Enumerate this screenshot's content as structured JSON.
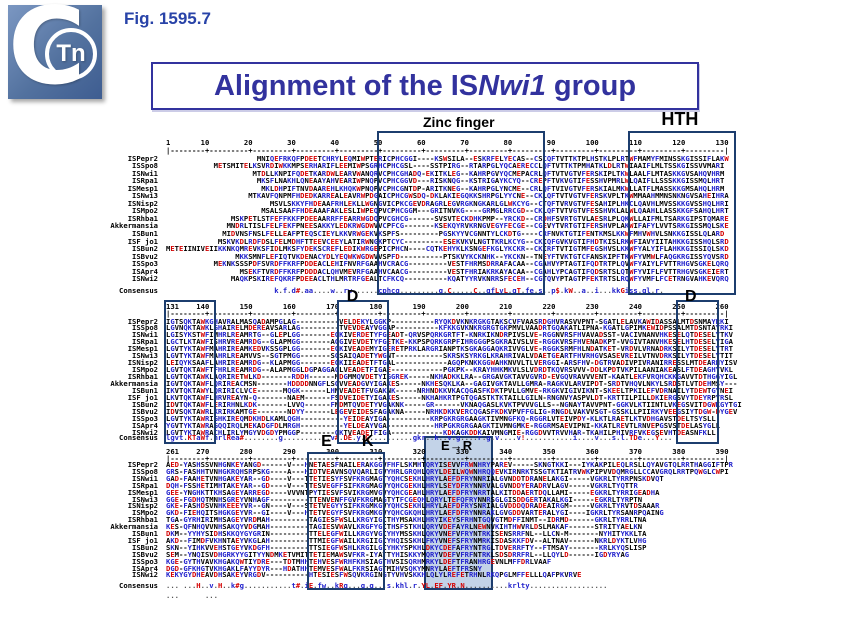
{
  "fig_label": "Fig. 1595.7",
  "logo": {
    "c": "C",
    "tn": "Tn"
  },
  "title": {
    "prefix": "Alignment of the IS",
    "italic": "Nwi1",
    "suffix": " group"
  },
  "colors": {
    "accent_navy": "#1c3d6e",
    "title_blue": "#32329e",
    "fig_blue": "#2843a8",
    "seq_red": "#d40000",
    "seq_blue": "#2222cc",
    "logo_blue": "#53729f",
    "er_fill": "#c3d3e8"
  },
  "annotations": {
    "zinc_finger": "Zinc finger",
    "hth": "HTH",
    "d1": "D",
    "d2": "D",
    "e": "E",
    "k": "K",
    "e_to_r": "E→R"
  },
  "alignment": {
    "consensus_label": "Consensus",
    "row_names": [
      "ISPepr2",
      "ISSpo8",
      "ISNwi1",
      "ISRpa1",
      "ISMesp1",
      "ISNwi3",
      "ISNisp2",
      "ISMpo2",
      "ISRhba1",
      "Akkermansia",
      "ISBun1",
      "ISF jo1",
      "ISBun2",
      "ISBvu2",
      "ISSpo3",
      "ISApr4",
      "ISNwi2"
    ],
    "blocks": [
      {
        "start": 1,
        "end": 130,
        "sequences": [
          "                     MNIQEFRKQFPDEETCHRYLEQMIWPTERICPHCGGI----KSWSILA--ESKRFELYECAS--CSCQFTVTTKTPLHSTKLPLRTWFMAMYFMINSSKGISSIFLAKW",
          "           METSMITELKSVRDIWKKMPSERHARIFLEEMIWPSGRHCPHCGSL----SSTPIRG--RTARPGLYQCAERECCLQFTVTTKTPMHATKLDLRTWIAAIFLMLTSSKGISSVVMARI",
          "                    MTDLLKNPIFQDETKARDWLEARVWANQRVCPHCGHADQ-EKITKLEG--KAHRPGVYQCMEPACRLQFTVTVGTVFERSKIPLTKWLAALFLMTASKKGVSAHQVHRM",
          "                     MKSFLNAKHLQNEAAYAHVEARIWPNQPVCPHCGGVD---RISKNQG--KSTRIGAYKCYQ--CREPFTVKVGTIFESSHVPMRLWLQAIFLLSSSKKGISSMQLHRT",
          "                      MKLDHPIFTNVDAAREHLKHQKWPNQPVCPHCGNTDP-ARITKNEG--KAHRPGLYNCME--CRLQFTVIVGTVFERSKIALMKWLLATFLMASSKKGMSAHQLHRM",
          "                   MTKAVFQNPMFHDEDKARREALEAVRWPDGAICPHCGWSDQ-DKLAKIEGQKKSHRPGLYYCNE--CKLQFTVTVGTVFERSKVPLTKWMMAAHMMNSNKNGVSAHEIHRA",
          "                        MSVLSKKYFHDEAAFRHLEKLLWGNGVICPKCGEVDRAGRLEGVRGKNGKARLGLWKCYG--CTQFTVRVGTVFESAHIPLHKCLQAVHLMVSSKKGVSSHQLHRI",
          "                      MSALSAAFFHDEAAAFAKLESLIWPEQPVCPHCGGM---GRITNVKG----GRMGLRRCGD--CKLQFTVTVGTVFESSHVKLALWLQAAHLLASSKKGFSAHQLHRT",
          "               MSKPETLSTFEFFKKFPDEEAARRFFEARRWGDQPVCGHCG------SVSVTECKDHKPMP--YRCKD--CRDHFSVRTGTVLAESRLPLQKWLLAIFMLTSARKGIPSTQMARE",
          "              MNDRLTISLFELFEKFPNEESAKKYLEDKRWGDWVVCPFCG-------KSEKQYRVKRNGVEGYFECGE--CGEVYTVRTGTIFERSHVPLAKWIFAFYLVVTSRKGISSMQLSKE",
          "             MIDVNSFNSLFELLEAFPTEQSCIEYLKKVRWGEKVKSPFS---------PGSKYYVCGNNTYLCKDTG----CRFNVKTGTIFENTKMSLKKWFMHVWHVLSNKKGISSLQLARD",
          "            MSKVKDLRDFDSLFELMDHFTTEEVCEEYLATIRWNGKPTCYC---------ESEKVKVLNGTTKRLKCYG--CKIQFGVKVGTIFHDTKISLRKWFIAVYIITAHKKGISSHQLSRD",
          "METEIINIVEIIKKNKQMREVKSFIDLMKSFYDEKSCREFLEDIKWRGEPICPHCN----CQTKEHYKLKSNGEFKGLYKCKR--CKIRFTVTIGTMFEGSHVSLKKWFYALYIFLAHKKGISSIQLSKD",
          "                MKKSMNFLEFIQTVKDENACYDLYEQWKWGDWVVSPFD----------PTSKVYKCKNHK--YKCKN--TNEYFTVKTGTCFANSKIPFTKWFYVMWLFAQGKRGISSYQVSRD",
          "           MEKNKSSSPDFSVRDFFKRFPDDEACLEHIFNVRFGAAHVCRACG---------VESTFHRMSDRRAFACAA--CGAHVYPTAGTIFQDTRTPLQVWFYAIYLFVTTRHGVSGKELQRQ",
          "                 MSEKFTVRDFFKRFPDDDACLQHVMEVRFGAAHVCAACG---------VESTFHRIAKRKAYACAA--CGAHLYPCAGTIFQDSRTSLQTWFYVIFLFVTTRHGVSGKEIERT",
          "               MAQKPSKIREFQKRFPDEEACLTHLMRTRFGEALTCFKCQ----------KQATYYRVKNRRSFECEH--CGTQVYPTAGTPFEKTRTSLRQWFYVMFLFCETRNGVAHKEVQRQ"
        ],
        "consensus": "                         k.f.d#.aa....w..rw......cphcg.........g.C.....C..qfLvL.gT.fe.s..p$.kW..a..i...kkGiss.ql.r."
      },
      {
        "start": 131,
        "end": 260,
        "sequences": [
          "IGTSQKTAWKGHAVRALMASQADAMPGLAG----------VELDEKYLGGKP----------RYQKDVKNKRGKGTAKSCVFVAASRDGHVRASVVPNT-SGATLELAVKAWIDASSALMTDSNMAYRKI",
          "LGVNQKTAWKLGHAIRELMDEREAVSARLAG---------TVEVDEAYVGGAP----------KFKKGVKNKRGRGTGKPMVLVAADRTGQAKATLIPNA-KGATLGPIMKEWIDPSSALMTDSNTAYRKI",
          "LGISYKSTWFIMHRLREAMRTG--GLEPLGG-------EGKIVERDETYFGEADT-QRVSPQRKGRTFT-KNRKIKNDRPIVSLVE-RGGNVRSFHVAVADSST-VACIVNANVHKESELQTDESELYTKV",
          "LGCTLKTAWFISHRVREAMRDG--GLAPMGG-------AGGIVEVDETYFGETKE-KKPSPQRKGRPFIHRGGGPSGKRAIVSLVE-RGGKVRSFHVENADKPT-VVGIVTANVHKESELHTDESELYIGA",
          "LGVTYKTAWFMAHRIREAMKEDVKSSGPLGG-------EGKIVEADEMYIGERETPRKLARGRIANPTKSGKAGGAQKRIVVGLVE-RGGKSRMFHLNDATKET-VRDVLVRNADRKSILYTDESELYTRT",
          "LGVTYKTAWFMAHRLREAMVVS--SGTPMGG-------SGSAIQADETYWGNT-----------SKRSKSYRKGLKRAHRIVALVDAETGEARTFHVRHGVSASEVREILVTNVDRKSILYTDESELYTIT",
          "LEIQYKSAAFLAHRIREAMRDG--KLAPMGG-------EGKIIEADETFTGAL------------AGQPKNKKGGWAHKNVVLTLVERGGI-ARSFHV-DGTRVADIVPIVRANIRRESSLMTDEARHYISV",
          "LGVTQKTAWFTFHRLREAMRDG--ALAPMGGLDGPAGGAGLVEADETFIGAE------------PGKPK--KRAYHHKMKVLSLVDRDTKQVRSVVV-DDLKPDTVKPILAANIAKEASLFTDEAGHYVKL",
          "LGVTQKTAWKLAQRIRETWLKD-------RDDH------MDGMMQVDETYIGGREK-----NKHADKKLRA--GRGAVGKTAVVGVRD-EVGQVRAVVVENT-KAATLEKFVRQHCKKGAVVTDTHGGYIGL",
          "IGVTQKTAWFLQRIREACMSN-------HDDDDNNGFLSGVVEADGVYIGAKES-----NKHESQKLKA--GAGIVGKTAVLLGMRA-RAGKVLARVIPDT-SRDTVHQVLNKYLSRDSTLVTDEHMSY---",
          "IKVTQKTAWYLQRIRICLVCE------MQGK------LHNVEADETFVGAKNK-----NRHNDKKVKACQGASFKDKTPVLLGMVE-RKGKVIGIVIKNT-SKEELTPKILEFVDRNAILYTDEWTGYNEI",
          "LKVTQKTAWFLHRVREAYN-Q-------NAEM------FSDVEIDETYIGAKES-----NKHAHKRTPGTQGASTKTKTAILLGILN-RNGNVYASPVLDT-KRTTILPILLDKIERGSVYTDEYRPYRSL",
          "IDVTQKTAWFLERIRHNLKDK-------LVVQ------FNDMTQVDETYVGAKNK-----GR------VKNAQGASLKVKTPVVVGLLS--NGNAYTAVVPNT-GGKVLKTIINTLVKEGSVITDGWKGYTGI",
          "IDVSQKTAWRLKRIRKAMTGE-------NDYY------LEGEVEIDESFAGAKNA-----NRHKDKKVERCQGASFKDKVPVFFGLIG-RNGDLVAKVVSGT-GSSKLLPIIRKYVEEGSIYTDGW-DYGEV",
          "LGVTYKTAWRIGHKIREQMDKHDLKAMLQGH----------YEIDEAYIGA----------KRPGKRGRGAAGKTIVMNGFKQ-RGGRLVTEIVPDY-KLKTLRAETLKTVDHGAVSTDELTSYSLL",
          "YGVTYKTAWRAGQQIRQLMEKADGFDLMRGH----------YELDEAYVGA-----------HRPGKRGRGAAGKTIVMNGMKE-RGGRMSAEVIPNI-KKATLREVTLRNVEPGSVSTDELASYGLL",
          "LGVTYKTAWRACHLIRLYMGYVDGDYPMGGP--------GKTVEADETFIGA------------KDKAGKDDKAIVMNGMIE-RGGDVVTRVVHAR-TKAHILPHIVRFVKEGSEVHTDEASNFKLL"
        ],
        "consensus": "lgvt.KTaWf.hrlRea#........g...........v#.DE.y.G..........gkr..k..v.g....r.g.v....v!...........i....v...s.l.TDe...Y..."
      },
      {
        "start": 261,
        "end": 390,
        "sequences": [
          "AED-YASHSSVNHGNKEYANGD------V---HNETAESFNAILERAKGGVFHFLSKMHTQRYISEVVFRWNHRYPAREV-----SKNGTKKI---IYKAKPILEQLRSLLQYAVGTQLRRTHAGGIFTPR",
          "GRS-FASHHTVNHGKRQHSRPSKG----A---HIDTVEAVNSQVQARLIGVYHRLGRQHLQRYLDEILWQWNHRQQEVKIRNRKTSSGTKTIATRVWKPIPVVDQMRGLLCCAVGRQLRRTPQWGLCWPI",
          "GAD-FAAHETVNHGAKEYAR--GD----V---TTETIESYFSVFKRGMAGTYQHCSEKHLHRYLAEFDFRYNNRIALGVNDDTDRANELAKGI-----VGKRLTYRRPNSKDVQT",
          "DQH-FSSHETIMHTAKEYAR--GD----V---TTESVEGFFSIFKRGMAGVYQHCGEKHLHRYLSEYDFRYNNRVALGVNDDYERADRVLAGV-----VGKRLTYQTTR",
          "GEE-YNGHKTTKHSAGEYARREGD----VVVNTPYTIESVFSVIKRGMVGVYQHCGEAHLHRYLAEFDFRYNRRTALKITDDAERTDQLLAMI-----EGKRLTYRRIGEADHA",
          "GGE-FGDHQTMNHSGREYVNHAGF---------TTENVENFFGVFKRGMAGTYTFCGEQHLQRYLTEFQFRYNNRSGLGISDDGERTAKALKGI-----EGKRLTYRPTN",
          "GKE-FASHDSVNHKEEEYVR--GN----V---STETVEGYYSIFKRGMKGVYQHCSEKHLHRYLAEFDFRYSNRIALGVDDDQDRADEAIRGM-----VGKRLTYRVTDSAAAR",
          "GKD-FIEHQITSHGKGEYVR--GI----V---HTETVEGYFSVFKRGMKGVYQHCGKQHLHRYLAEFDFRYNNRAKLGVGDDVARTERALYGI----IGKRLTYRSANRPQAING",
          "TGA-GYRHIRIMHSAGEYVRDMAH---------TAGIESFWSLLKRGYIGITHYMSAKHLHRYIKEYSFRHNTGQVGTMDFFINMT--IDRMD------GKRLTYRRLTNA",
          "KES-QFNHQVVNHSAKQYVDGMAH---------TAGIESVWAVLKRGFYGITHSFSTKHLQRYVDEFAYRLNEWNVKIHTHWVRLDSLMAKAF------STRITYAELKN",
          "DKM--YYHYSIDHSKKQYGYGRIN---------TTELEGFWILLKRGYVGIYHYMSSKHLQKYVNEFVFRYNTRKISENSRRFNL--LLCN-M-------NYHITYKKLTA",
          "AKD--FIMDFVKHNTAEYVKGLAH---------TTMIEGFWAILKRGIIGIYHQISSKHLFKYVNEFSFRYNMRKISDASKKFDV--ALTNAV------NKRLDYKTLVHG",
          "SKN--YIHKVVEHSTGEYVKDGFH---------TTSIEGFWSHLKRGILGIYHKYSPKHLDKYCDEFAFRYNTRGLTDVERRFTY--FTMSAY-------KRLKYQSLISP",
          "SEM--YNQISVDHGRKYYGITYYNDMKETVMITTETIEMAWSVFKR-IYATTYHISKKYMQRYVDEFVFRFNTRKLSDSDRRFRL--LLQYLD------IGDYRYAG",
          "KGE-GYTHVAVKHGAKQWTIYDRE---TDTMHHTEHVESFWRHFKHSIAGTHVSISQRHMRKYLDEFTFRANHRGEVNLMFFDRLVAAF",
          "DGD-GFKHGTVKHGAKLFAYYDYR---HDATHHTEMVESFWALFKRSIAGTMIHVSQKYMNRYLAEFTFRSNY",
          "KEKYGYDHEAVDHSAKEYVRGDV----------HTESIESFWSQVKRGINGTYVHVSKKHLQLYLREFETRHNLRKQPGLMFFELLLQAFPKVRVE"
        ],
        "consensus": "... ...H..v.H..k#g...........t#.iE.fw..kRg...g.g...s.khl.r.YL.EF.YR.N..........krlty..................",
        "footer": "...      ..."
      }
    ]
  }
}
